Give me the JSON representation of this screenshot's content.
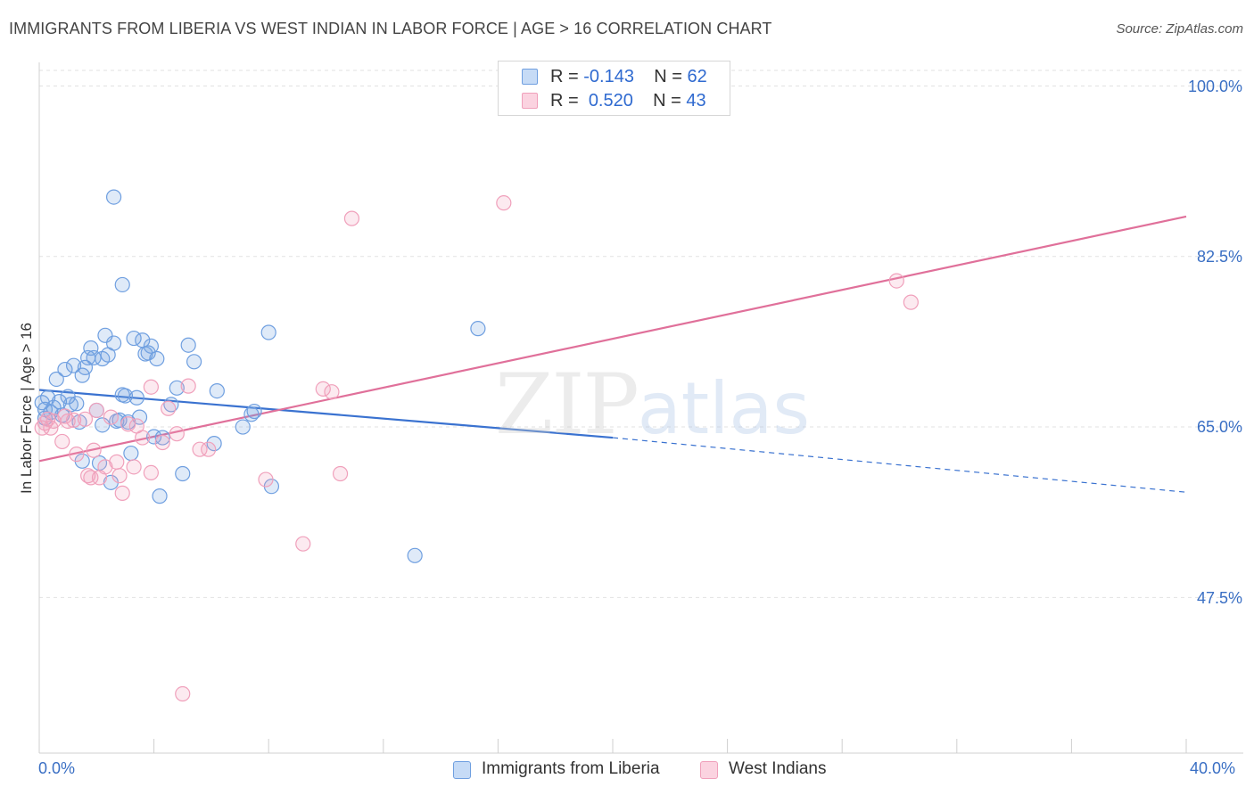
{
  "chart_data": {
    "type": "scatter",
    "title": "IMMIGRANTS FROM LIBERIA VS WEST INDIAN IN LABOR FORCE | AGE > 16 CORRELATION CHART",
    "source": "Source: ZipAtlas.com",
    "xlabel": "",
    "ylabel": "In Labor Force | Age > 16",
    "xlim": [
      0,
      40
    ],
    "ylim": [
      30.5,
      102
    ],
    "x_tick_labels": [
      "0.0%",
      "40.0%"
    ],
    "y_ticks": [
      47.5,
      65.0,
      82.5,
      100.0
    ],
    "y_tick_labels": [
      "47.5%",
      "65.0%",
      "82.5%",
      "100.0%"
    ],
    "grid": true,
    "legend_position": "top-center",
    "watermark": {
      "zip": "ZIP",
      "atlas": "atlas"
    },
    "colors": {
      "liberia": "#6f9fe0",
      "west_indian": "#f0a0bb",
      "liberia_line": "#3a72d0",
      "west_indian_line": "#e0709a",
      "axis_text": "#3a6fc4"
    },
    "stats": [
      {
        "series": "Immigrants from Liberia",
        "r_label": "R =",
        "r_value": "-0.143",
        "n_label": "N =",
        "n_value": "62"
      },
      {
        "series": "West Indians",
        "r_label": "R =",
        "r_value": "0.520",
        "n_label": "N =",
        "n_value": "43"
      }
    ],
    "series": [
      {
        "name": "Immigrants from Liberia",
        "trend": {
          "x": [
            0,
            20,
            40
          ],
          "y": [
            68.8,
            63.9,
            58.3
          ],
          "solid_until": 20
        },
        "points": [
          [
            0.1,
            67.5
          ],
          [
            0.2,
            66.8
          ],
          [
            0.2,
            65.9
          ],
          [
            0.3,
            68.0
          ],
          [
            0.4,
            66.5
          ],
          [
            0.5,
            67.0
          ],
          [
            0.6,
            69.9
          ],
          [
            0.7,
            67.6
          ],
          [
            0.8,
            66.2
          ],
          [
            0.9,
            70.9
          ],
          [
            1.0,
            68.1
          ],
          [
            1.1,
            67.3
          ],
          [
            1.2,
            71.3
          ],
          [
            1.3,
            67.4
          ],
          [
            1.4,
            65.5
          ],
          [
            1.5,
            70.3
          ],
          [
            1.5,
            61.5
          ],
          [
            1.6,
            71.1
          ],
          [
            1.7,
            72.1
          ],
          [
            1.8,
            73.1
          ],
          [
            1.9,
            72.1
          ],
          [
            2.0,
            66.7
          ],
          [
            2.1,
            61.3
          ],
          [
            2.2,
            65.2
          ],
          [
            2.2,
            72.0
          ],
          [
            2.3,
            74.4
          ],
          [
            2.4,
            72.4
          ],
          [
            2.5,
            59.3
          ],
          [
            2.6,
            88.6
          ],
          [
            2.6,
            73.6
          ],
          [
            2.7,
            65.6
          ],
          [
            2.8,
            65.7
          ],
          [
            2.9,
            68.3
          ],
          [
            2.9,
            79.6
          ],
          [
            3.0,
            68.2
          ],
          [
            3.1,
            65.5
          ],
          [
            3.2,
            62.3
          ],
          [
            3.3,
            74.1
          ],
          [
            3.4,
            68.0
          ],
          [
            3.5,
            66.0
          ],
          [
            3.6,
            73.9
          ],
          [
            3.7,
            72.5
          ],
          [
            3.8,
            72.6
          ],
          [
            3.9,
            73.3
          ],
          [
            4.0,
            64.0
          ],
          [
            4.1,
            72.0
          ],
          [
            4.2,
            57.9
          ],
          [
            4.3,
            63.9
          ],
          [
            4.6,
            67.3
          ],
          [
            4.8,
            69.0
          ],
          [
            5.0,
            60.2
          ],
          [
            5.2,
            73.4
          ],
          [
            5.4,
            71.7
          ],
          [
            6.1,
            63.3
          ],
          [
            6.2,
            68.7
          ],
          [
            7.1,
            65.0
          ],
          [
            7.5,
            66.6
          ],
          [
            7.4,
            66.3
          ],
          [
            8.0,
            74.7
          ],
          [
            8.1,
            58.9
          ],
          [
            13.1,
            51.8
          ],
          [
            15.3,
            75.1
          ]
        ]
      },
      {
        "name": "West Indians",
        "trend": {
          "x": [
            0,
            40
          ],
          "y": [
            61.5,
            86.6
          ]
        },
        "points": [
          [
            0.1,
            64.9
          ],
          [
            0.2,
            65.4
          ],
          [
            0.3,
            65.8
          ],
          [
            0.4,
            64.9
          ],
          [
            0.5,
            65.6
          ],
          [
            0.8,
            63.5
          ],
          [
            0.9,
            66.1
          ],
          [
            1.0,
            65.6
          ],
          [
            1.2,
            65.7
          ],
          [
            1.3,
            62.2
          ],
          [
            1.6,
            65.8
          ],
          [
            1.7,
            60.0
          ],
          [
            1.8,
            59.8
          ],
          [
            1.9,
            62.6
          ],
          [
            2.0,
            66.7
          ],
          [
            2.1,
            59.8
          ],
          [
            2.3,
            60.9
          ],
          [
            2.5,
            66.0
          ],
          [
            2.7,
            61.4
          ],
          [
            2.8,
            60.0
          ],
          [
            2.9,
            58.2
          ],
          [
            3.1,
            65.3
          ],
          [
            3.3,
            60.9
          ],
          [
            3.4,
            65.1
          ],
          [
            3.6,
            63.9
          ],
          [
            3.9,
            60.3
          ],
          [
            3.9,
            69.1
          ],
          [
            4.3,
            63.4
          ],
          [
            4.5,
            66.9
          ],
          [
            4.8,
            64.3
          ],
          [
            5.0,
            37.6
          ],
          [
            5.2,
            69.2
          ],
          [
            5.6,
            62.7
          ],
          [
            5.9,
            62.7
          ],
          [
            7.9,
            59.6
          ],
          [
            9.2,
            53.0
          ],
          [
            9.9,
            68.9
          ],
          [
            10.2,
            68.6
          ],
          [
            10.5,
            60.2
          ],
          [
            10.9,
            86.4
          ],
          [
            16.2,
            88.0
          ],
          [
            29.9,
            80.0
          ],
          [
            30.4,
            77.8
          ]
        ]
      }
    ]
  }
}
